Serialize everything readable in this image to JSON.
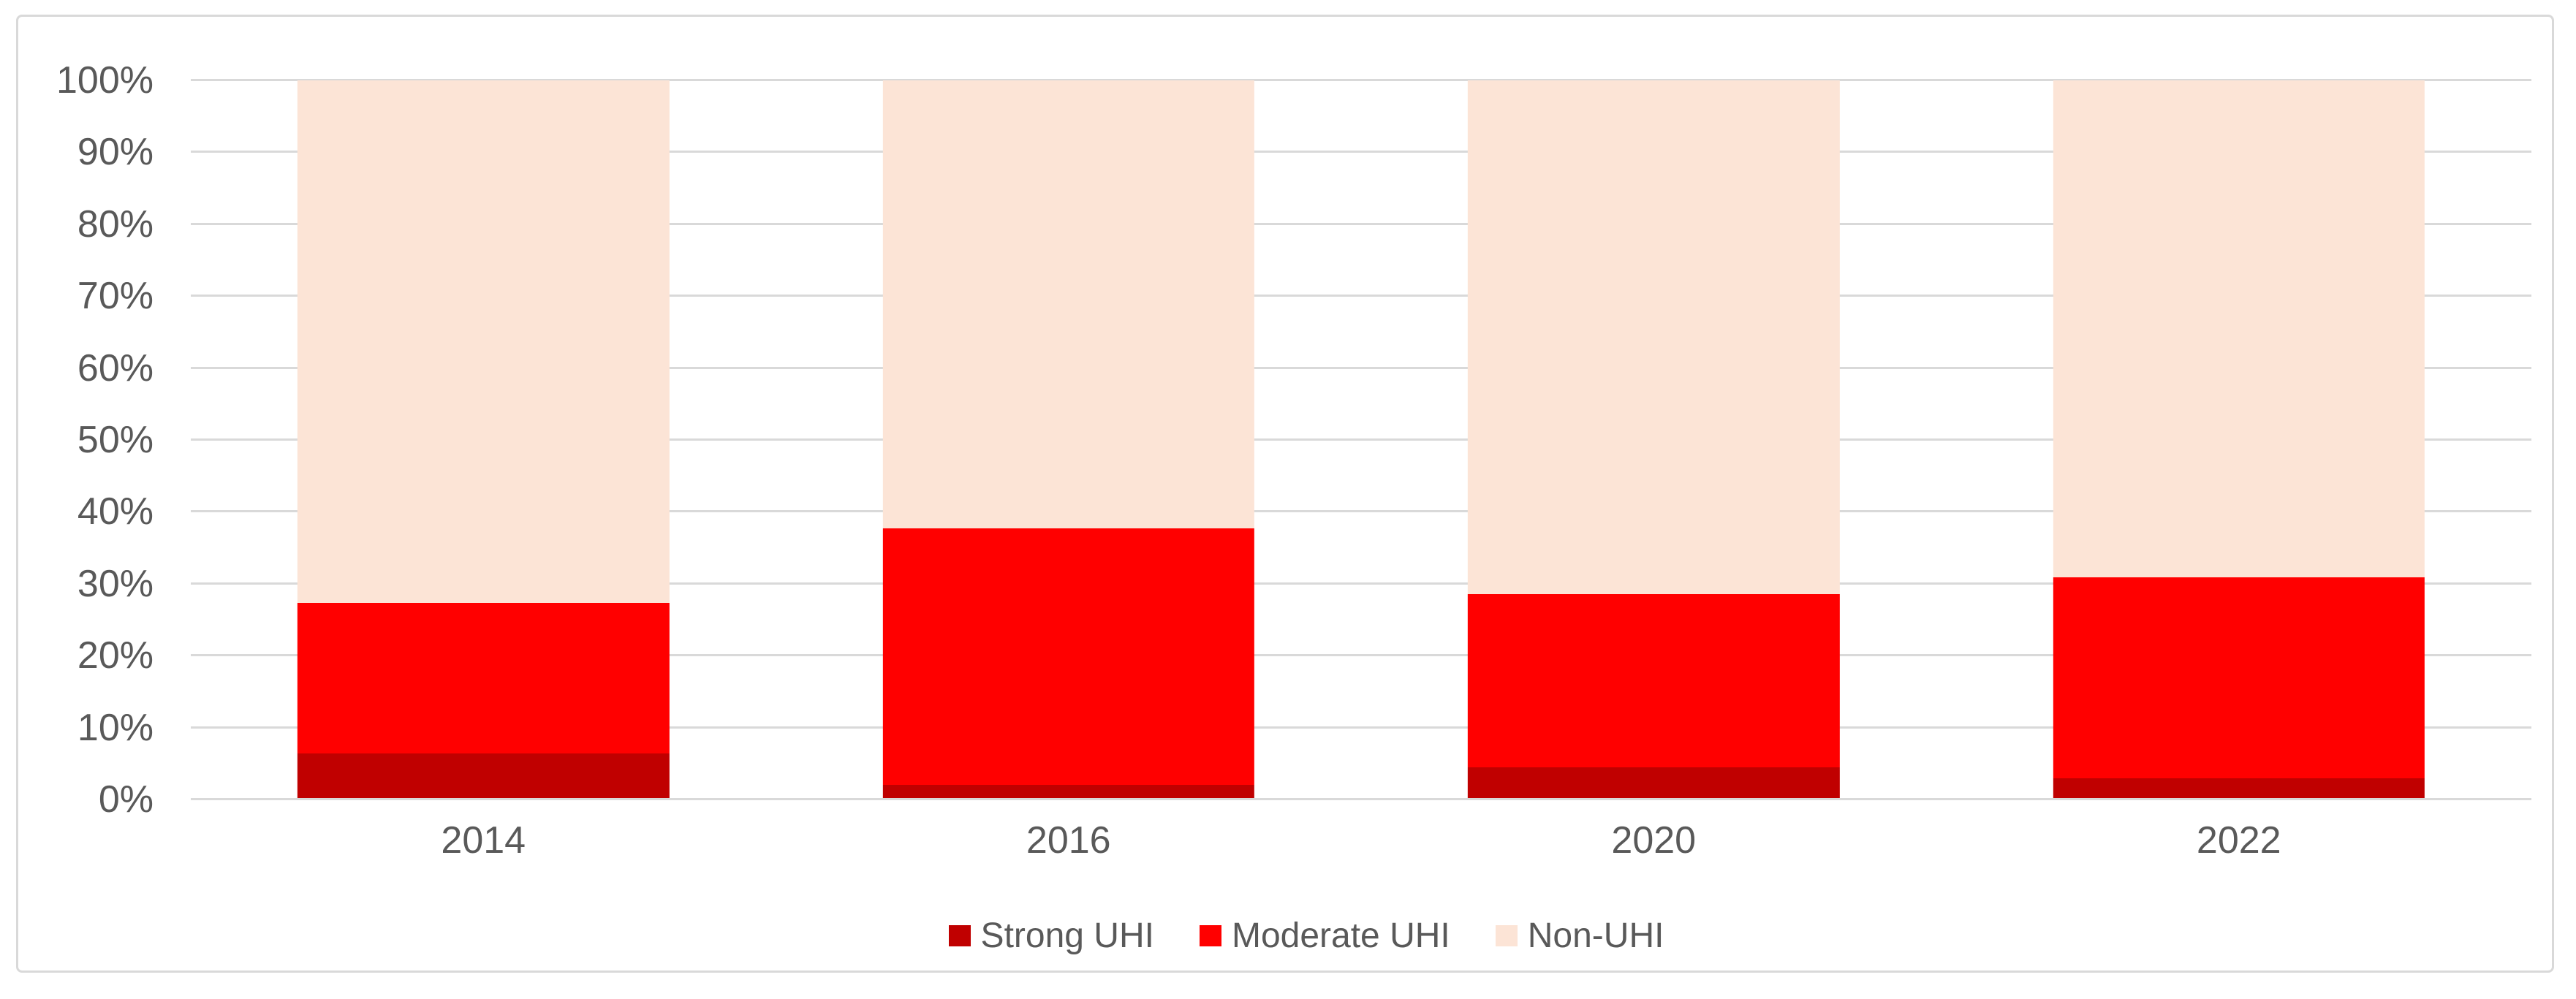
{
  "chart_data": {
    "type": "bar",
    "stacked": true,
    "percent_stacked": true,
    "title": "",
    "xlabel": "",
    "ylabel": "",
    "categories": [
      "2014",
      "2016",
      "2020",
      "2022"
    ],
    "series": [
      {
        "name": "Strong UHI",
        "color": "#C00000",
        "values": [
          6.4,
          2.0,
          4.5,
          2.9
        ]
      },
      {
        "name": "Moderate UHI",
        "color": "#FF0000",
        "values": [
          20.9,
          35.7,
          24.1,
          28.0
        ]
      },
      {
        "name": "Non-UHI",
        "color": "#FCE4D6",
        "values": [
          72.7,
          62.3,
          71.4,
          69.1
        ]
      }
    ],
    "ylim": [
      0,
      100
    ],
    "y_ticks": [
      "0%",
      "10%",
      "20%",
      "30%",
      "40%",
      "50%",
      "60%",
      "70%",
      "80%",
      "90%",
      "100%"
    ],
    "grid": true,
    "legend_position": "bottom-center"
  },
  "colors": {
    "gridline": "#D9D9D9",
    "axis_line": "#D9D9D9",
    "tick_label": "#595959",
    "legend_text": "#595959",
    "chart_border": "#D9D9D9",
    "background": "#FFFFFF"
  }
}
